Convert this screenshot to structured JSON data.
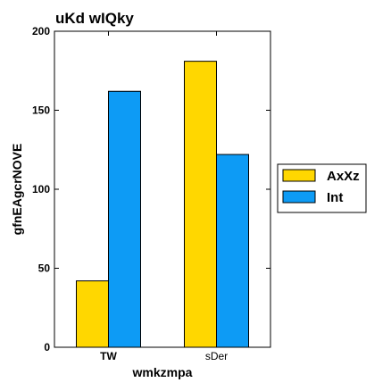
{
  "chart_data": {
    "type": "bar",
    "title": "uKd wIQky",
    "xlabel": "wmkzmpa",
    "ylabel": "gfnEAgcrNOVE",
    "categories": [
      "TW",
      "sDer"
    ],
    "category_bold": [
      true,
      false
    ],
    "series": [
      {
        "name": "AxXz",
        "values": [
          42,
          181
        ],
        "color": "#FFD700"
      },
      {
        "name": "Int",
        "values": [
          162,
          122
        ],
        "color": "#0D9BF5"
      }
    ],
    "ylim": [
      0,
      200
    ],
    "yticks": [
      0,
      50,
      100,
      150,
      200
    ],
    "grid": false,
    "legend_position": "right"
  }
}
